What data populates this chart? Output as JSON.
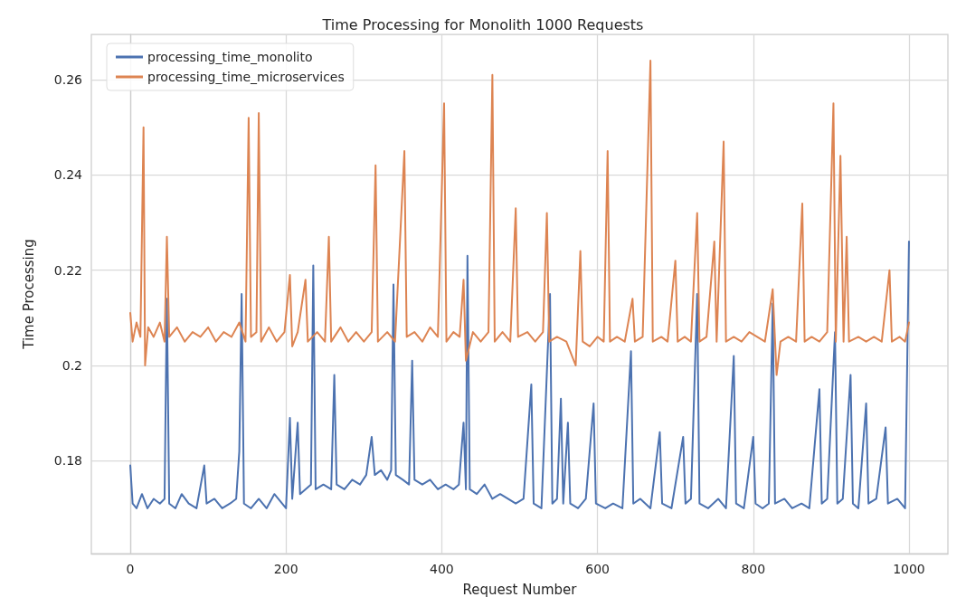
{
  "chart_data": {
    "type": "line",
    "title": "Time Processing for Monolith 1000 Requests",
    "xlabel": "Request Number",
    "ylabel": "Time Processing",
    "xlim": [
      -50,
      1050
    ],
    "xticks": [
      0,
      200,
      400,
      600,
      800,
      1000
    ],
    "ylim": [
      0.1605,
      0.2695
    ],
    "yticks": [
      0.18,
      0.2,
      0.22,
      0.24,
      0.26
    ],
    "grid": true,
    "legend": "top left",
    "marker": "none",
    "line_style": "solid",
    "series": [
      {
        "name": "processing_time_monolito",
        "color": "#4c72b0",
        "x": [
          0,
          3,
          8,
          15,
          22,
          30,
          38,
          44,
          47,
          50,
          58,
          66,
          75,
          85,
          95,
          98,
          108,
          118,
          128,
          136,
          140,
          143,
          146,
          155,
          165,
          175,
          185,
          195,
          200,
          205,
          208,
          215,
          218,
          225,
          232,
          235,
          238,
          248,
          258,
          262,
          265,
          275,
          285,
          295,
          303,
          310,
          314,
          322,
          330,
          335,
          338,
          341,
          350,
          358,
          362,
          365,
          375,
          385,
          395,
          405,
          415,
          422,
          428,
          431,
          433,
          436,
          445,
          455,
          465,
          475,
          485,
          495,
          505,
          515,
          518,
          528,
          539,
          542,
          548,
          553,
          556,
          562,
          565,
          575,
          585,
          595,
          598,
          610,
          620,
          632,
          643,
          646,
          655,
          668,
          680,
          683,
          695,
          710,
          713,
          720,
          728,
          731,
          742,
          755,
          765,
          775,
          778,
          788,
          800,
          803,
          812,
          820,
          825,
          828,
          840,
          850,
          862,
          872,
          885,
          888,
          895,
          905,
          908,
          915,
          925,
          928,
          935,
          945,
          948,
          958,
          970,
          973,
          985,
          995,
          1000
        ],
        "values": [
          0.179,
          0.171,
          0.17,
          0.173,
          0.17,
          0.172,
          0.171,
          0.172,
          0.214,
          0.171,
          0.17,
          0.173,
          0.171,
          0.17,
          0.179,
          0.171,
          0.172,
          0.17,
          0.171,
          0.172,
          0.182,
          0.215,
          0.171,
          0.17,
          0.172,
          0.17,
          0.173,
          0.171,
          0.17,
          0.189,
          0.172,
          0.188,
          0.173,
          0.174,
          0.175,
          0.221,
          0.174,
          0.175,
          0.174,
          0.198,
          0.175,
          0.174,
          0.176,
          0.175,
          0.177,
          0.185,
          0.177,
          0.178,
          0.176,
          0.178,
          0.217,
          0.177,
          0.176,
          0.175,
          0.201,
          0.176,
          0.175,
          0.176,
          0.174,
          0.175,
          0.174,
          0.175,
          0.188,
          0.174,
          0.223,
          0.174,
          0.173,
          0.175,
          0.172,
          0.173,
          0.172,
          0.171,
          0.172,
          0.196,
          0.171,
          0.17,
          0.215,
          0.171,
          0.172,
          0.193,
          0.171,
          0.188,
          0.171,
          0.17,
          0.172,
          0.192,
          0.171,
          0.17,
          0.171,
          0.17,
          0.203,
          0.171,
          0.172,
          0.17,
          0.186,
          0.171,
          0.17,
          0.185,
          0.171,
          0.172,
          0.215,
          0.171,
          0.17,
          0.172,
          0.17,
          0.202,
          0.171,
          0.17,
          0.185,
          0.171,
          0.17,
          0.171,
          0.213,
          0.171,
          0.172,
          0.17,
          0.171,
          0.17,
          0.195,
          0.171,
          0.172,
          0.207,
          0.171,
          0.172,
          0.198,
          0.171,
          0.17,
          0.192,
          0.171,
          0.172,
          0.187,
          0.171,
          0.172,
          0.17,
          0.226
        ]
      },
      {
        "name": "processing_time_microservices",
        "color": "#dd8452",
        "x": [
          0,
          3,
          8,
          13,
          17,
          19,
          23,
          30,
          38,
          44,
          47,
          50,
          60,
          70,
          80,
          90,
          100,
          110,
          120,
          130,
          140,
          148,
          152,
          155,
          162,
          165,
          168,
          178,
          188,
          198,
          205,
          208,
          215,
          225,
          228,
          240,
          250,
          255,
          258,
          270,
          280,
          290,
          300,
          310,
          315,
          318,
          330,
          340,
          352,
          355,
          365,
          375,
          385,
          395,
          403,
          406,
          415,
          423,
          428,
          431,
          440,
          450,
          460,
          465,
          468,
          478,
          488,
          495,
          498,
          510,
          520,
          530,
          535,
          538,
          548,
          560,
          572,
          578,
          581,
          590,
          600,
          608,
          613,
          616,
          625,
          635,
          645,
          648,
          658,
          668,
          671,
          682,
          690,
          700,
          703,
          712,
          720,
          728,
          731,
          740,
          750,
          753,
          762,
          765,
          775,
          785,
          795,
          805,
          815,
          825,
          830,
          835,
          845,
          855,
          863,
          866,
          875,
          885,
          895,
          903,
          906,
          912,
          916,
          920,
          923,
          935,
          945,
          955,
          965,
          975,
          978,
          988,
          995,
          1000
        ],
        "values": [
          0.211,
          0.205,
          0.209,
          0.206,
          0.25,
          0.2,
          0.208,
          0.206,
          0.209,
          0.205,
          0.227,
          0.206,
          0.208,
          0.205,
          0.207,
          0.206,
          0.208,
          0.205,
          0.207,
          0.206,
          0.209,
          0.205,
          0.252,
          0.206,
          0.207,
          0.253,
          0.205,
          0.208,
          0.205,
          0.207,
          0.219,
          0.204,
          0.207,
          0.218,
          0.205,
          0.207,
          0.205,
          0.227,
          0.205,
          0.208,
          0.205,
          0.207,
          0.205,
          0.207,
          0.242,
          0.205,
          0.207,
          0.205,
          0.245,
          0.206,
          0.207,
          0.205,
          0.208,
          0.206,
          0.255,
          0.205,
          0.207,
          0.206,
          0.218,
          0.201,
          0.207,
          0.205,
          0.207,
          0.261,
          0.205,
          0.207,
          0.205,
          0.233,
          0.206,
          0.207,
          0.205,
          0.207,
          0.232,
          0.205,
          0.206,
          0.205,
          0.2,
          0.224,
          0.205,
          0.204,
          0.206,
          0.205,
          0.245,
          0.205,
          0.206,
          0.205,
          0.214,
          0.205,
          0.206,
          0.264,
          0.205,
          0.206,
          0.205,
          0.222,
          0.205,
          0.206,
          0.205,
          0.232,
          0.205,
          0.206,
          0.226,
          0.205,
          0.247,
          0.205,
          0.206,
          0.205,
          0.207,
          0.206,
          0.205,
          0.216,
          0.198,
          0.205,
          0.206,
          0.205,
          0.234,
          0.205,
          0.206,
          0.205,
          0.207,
          0.255,
          0.205,
          0.244,
          0.205,
          0.227,
          0.205,
          0.206,
          0.205,
          0.206,
          0.205,
          0.22,
          0.205,
          0.206,
          0.205,
          0.209
        ]
      }
    ]
  }
}
